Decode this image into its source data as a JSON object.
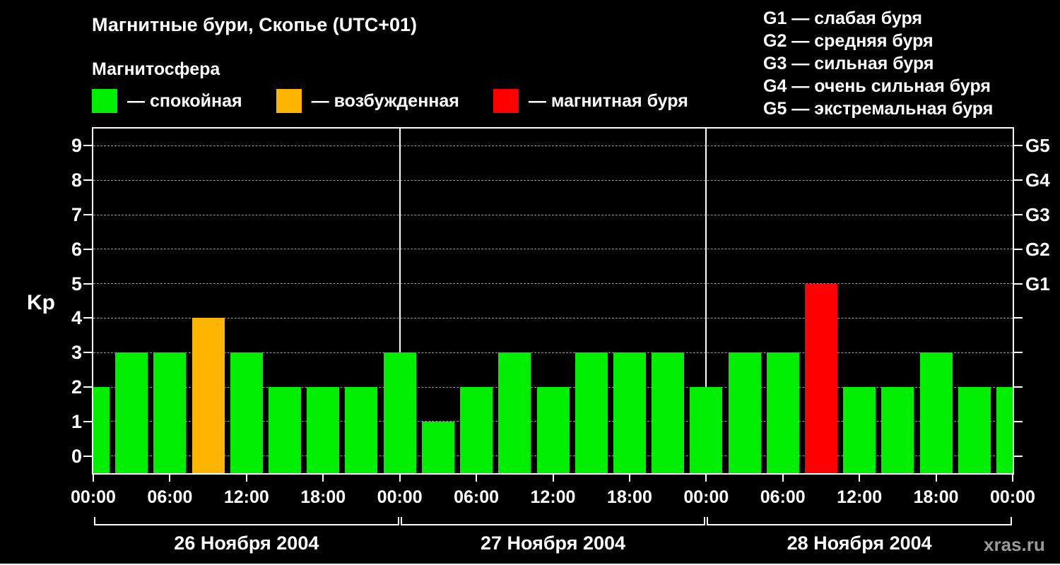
{
  "header": {
    "title": "Магнитные бури, Скопье (UTC+01)",
    "subtitle": "Магнитосфера"
  },
  "legend": {
    "items": [
      {
        "key": "quiet",
        "label": "— спокойная",
        "color": "#00ee00"
      },
      {
        "key": "unsettled",
        "label": "— возбужденная",
        "color": "#ffb400"
      },
      {
        "key": "storm",
        "label": "— магнитная буря",
        "color": "#ff0000"
      }
    ]
  },
  "g_scale_legend": {
    "items": [
      "G1 — слабая буря",
      "G2 — средняя буря",
      "G3 — сильная буря",
      "G4 — очень сильная буря",
      "G5 — экстремальная буря"
    ]
  },
  "watermark": "xras.ru",
  "chart_data": {
    "type": "bar",
    "title": "Магнитные бури, Скопье (UTC+01)",
    "ylabel": "Kp",
    "ylim": [
      -0.5,
      9.5
    ],
    "yticks": [
      0,
      1,
      2,
      3,
      4,
      5,
      6,
      7,
      8,
      9
    ],
    "grid": "dashed-horizontal",
    "right_axis_ticks": [
      {
        "kp": 5,
        "label": "G1"
      },
      {
        "kp": 6,
        "label": "G2"
      },
      {
        "kp": 7,
        "label": "G3"
      },
      {
        "kp": 8,
        "label": "G4"
      },
      {
        "kp": 9,
        "label": "G5"
      }
    ],
    "x_hours_total": 72,
    "x_tick_step_hours": 6,
    "x_tick_labels": [
      "00:00",
      "06:00",
      "12:00",
      "18:00",
      "00:00",
      "06:00",
      "12:00",
      "18:00",
      "00:00",
      "06:00",
      "12:00",
      "18:00",
      "00:00"
    ],
    "days": [
      {
        "label": "26 Ноября 2004",
        "start_hour": 0
      },
      {
        "label": "27 Ноября 2004",
        "start_hour": 24
      },
      {
        "label": "28 Ноября 2004",
        "start_hour": 48
      }
    ],
    "level_colors": {
      "quiet": "#00ee00",
      "unsettled": "#ffb400",
      "storm": "#ff0000"
    },
    "bars": [
      {
        "hour": 0,
        "kp": 2,
        "level": "quiet"
      },
      {
        "hour": 3,
        "kp": 3,
        "level": "quiet"
      },
      {
        "hour": 6,
        "kp": 3,
        "level": "quiet"
      },
      {
        "hour": 9,
        "kp": 4,
        "level": "unsettled"
      },
      {
        "hour": 12,
        "kp": 3,
        "level": "quiet"
      },
      {
        "hour": 15,
        "kp": 2,
        "level": "quiet"
      },
      {
        "hour": 18,
        "kp": 2,
        "level": "quiet"
      },
      {
        "hour": 21,
        "kp": 2,
        "level": "quiet"
      },
      {
        "hour": 24,
        "kp": 3,
        "level": "quiet"
      },
      {
        "hour": 27,
        "kp": 1,
        "level": "quiet"
      },
      {
        "hour": 30,
        "kp": 2,
        "level": "quiet"
      },
      {
        "hour": 33,
        "kp": 3,
        "level": "quiet"
      },
      {
        "hour": 36,
        "kp": 2,
        "level": "quiet"
      },
      {
        "hour": 39,
        "kp": 3,
        "level": "quiet"
      },
      {
        "hour": 42,
        "kp": 3,
        "level": "quiet"
      },
      {
        "hour": 45,
        "kp": 3,
        "level": "quiet"
      },
      {
        "hour": 48,
        "kp": 2,
        "level": "quiet"
      },
      {
        "hour": 51,
        "kp": 3,
        "level": "quiet"
      },
      {
        "hour": 54,
        "kp": 3,
        "level": "quiet"
      },
      {
        "hour": 57,
        "kp": 5,
        "level": "storm"
      },
      {
        "hour": 60,
        "kp": 2,
        "level": "quiet"
      },
      {
        "hour": 63,
        "kp": 2,
        "level": "quiet"
      },
      {
        "hour": 66,
        "kp": 3,
        "level": "quiet"
      },
      {
        "hour": 69,
        "kp": 2,
        "level": "quiet"
      },
      {
        "hour": 72,
        "kp": 2,
        "level": "quiet"
      }
    ]
  }
}
